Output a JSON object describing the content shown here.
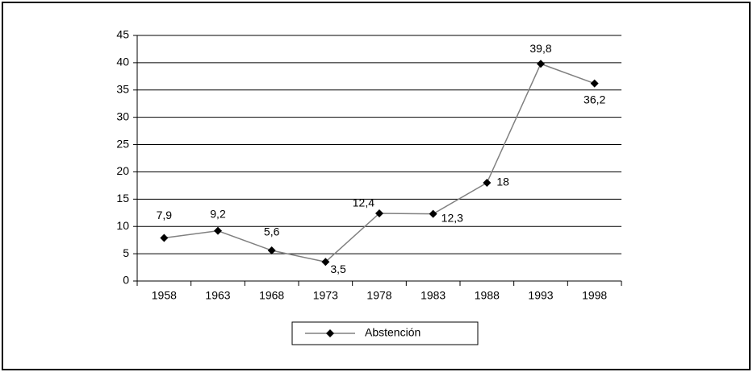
{
  "chart_data": {
    "type": "line",
    "categories": [
      "1958",
      "1963",
      "1968",
      "1973",
      "1978",
      "1983",
      "1988",
      "1993",
      "1998"
    ],
    "series": [
      {
        "name": "Abstención",
        "color": "#808080",
        "marker_color": "#000000",
        "values": [
          7.9,
          9.2,
          5.6,
          3.5,
          12.4,
          12.3,
          18,
          39.8,
          36.2
        ],
        "value_labels": [
          "7,9",
          "9,2",
          "5,6",
          "3,5",
          "12,4",
          "12,3",
          "18",
          "39,8",
          "36,2"
        ]
      }
    ],
    "ylim": [
      0,
      45
    ],
    "yticks": [
      0,
      5,
      10,
      15,
      20,
      25,
      30,
      35,
      40,
      45
    ],
    "grid": true,
    "legend": "bottom"
  }
}
